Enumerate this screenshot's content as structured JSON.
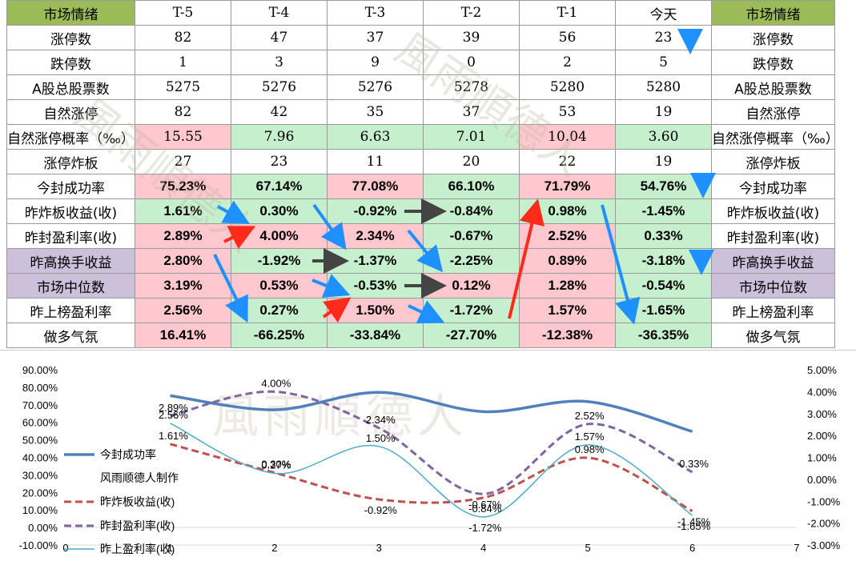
{
  "table": {
    "header": [
      "市场情绪",
      "T-5",
      "T-4",
      "T-3",
      "T-2",
      "T-1",
      "今天",
      "市场情绪"
    ],
    "rows": [
      {
        "label": "涨停数",
        "values": [
          "82",
          "47",
          "37",
          "39",
          "56",
          "23"
        ],
        "style": "red",
        "bg": [
          "",
          "",
          "",
          "",
          "",
          ""
        ]
      },
      {
        "label": "跌停数",
        "values": [
          "1",
          "3",
          "9",
          "0",
          "2",
          "5"
        ],
        "style": "green",
        "bg": [
          "",
          "",
          "",
          "",
          "",
          ""
        ]
      },
      {
        "label": "A股总股票数",
        "values": [
          "5275",
          "5276",
          "5276",
          "5278",
          "5280",
          "5280"
        ],
        "style": "black",
        "bg": [
          "",
          "",
          "",
          "",
          "",
          ""
        ]
      },
      {
        "label": "自然涨停",
        "values": [
          "82",
          "42",
          "35",
          "37",
          "53",
          "19"
        ],
        "style": "red",
        "bg": [
          "",
          "",
          "",
          "",
          "",
          ""
        ]
      },
      {
        "label": "自然涨停概率（‰）",
        "values": [
          "15.55",
          "7.96",
          "6.63",
          "7.01",
          "10.04",
          "3.60"
        ],
        "style": "mixed",
        "bg": [
          "pink",
          "green",
          "green",
          "green",
          "pink",
          "green"
        ]
      },
      {
        "label": "涨停炸板",
        "values": [
          "27",
          "23",
          "11",
          "20",
          "22",
          "19"
        ],
        "style": "green",
        "bg": [
          "",
          "",
          "",
          "",
          "",
          ""
        ]
      },
      {
        "label": "今封成功率",
        "values": [
          "75.23%",
          "67.14%",
          "77.08%",
          "66.10%",
          "71.79%",
          "54.76%"
        ],
        "style": "boldmixed",
        "bg": [
          "pink",
          "green",
          "pink",
          "green",
          "pink",
          "green"
        ]
      },
      {
        "label": "昨炸板收益(收)",
        "values": [
          "1.61%",
          "0.30%",
          "-0.92%",
          "-0.84%",
          "0.98%",
          "-1.45%"
        ],
        "style": "boldmixed",
        "bg": [
          "green",
          "green",
          "green",
          "green",
          "green",
          "green"
        ]
      },
      {
        "label": "昨封盈利率(收)",
        "values": [
          "2.89%",
          "4.00%",
          "2.34%",
          "-0.67%",
          "2.52%",
          "0.33%"
        ],
        "style": "boldmixed",
        "bg": [
          "pink",
          "pink",
          "pink",
          "green",
          "pink",
          "green"
        ]
      },
      {
        "label": "昨高换手收益",
        "values": [
          "2.80%",
          "-1.92%",
          "-1.37%",
          "-2.25%",
          "0.89%",
          "-3.18%"
        ],
        "style": "boldmixed",
        "bg": [
          "pink",
          "green",
          "green",
          "green",
          "pink",
          "green"
        ],
        "labelbg": "purple"
      },
      {
        "label": "市场中位数",
        "values": [
          "3.19%",
          "0.53%",
          "-0.53%",
          "0.12%",
          "1.28%",
          "-0.54%"
        ],
        "style": "boldmixed",
        "bg": [
          "pink",
          "pink",
          "green",
          "pink",
          "pink",
          "green"
        ],
        "labelbg": "purple"
      },
      {
        "label": "昨上榜盈利率",
        "values": [
          "2.56%",
          "0.27%",
          "1.50%",
          "-1.72%",
          "1.57%",
          "-1.65%"
        ],
        "style": "boldmixed",
        "bg": [
          "pink",
          "green",
          "pink",
          "green",
          "pink",
          "green"
        ]
      },
      {
        "label": "做多气氛",
        "values": [
          "16.41%",
          "-66.25%",
          "-33.84%",
          "-27.70%",
          "-12.38%",
          "-36.35%"
        ],
        "style": "boldmixed",
        "bg": [
          "pink",
          "green",
          "green",
          "green",
          "pink",
          "green"
        ]
      }
    ],
    "watermark": "風雨順德人"
  },
  "chart_data": {
    "type": "line",
    "x": [
      1,
      2,
      3,
      4,
      5,
      6
    ],
    "xlim": [
      0,
      7
    ],
    "xticks": [
      "0",
      "1",
      "2",
      "3",
      "4",
      "5",
      "6",
      "7"
    ],
    "y_left_ticks": [
      "90.00%",
      "80.00%",
      "70.00%",
      "60.00%",
      "50.00%",
      "40.00%",
      "30.00%",
      "20.00%",
      "10.00%",
      "0.00%",
      "-10.00%"
    ],
    "ylim_left": [
      -10,
      90
    ],
    "y_right_ticks": [
      "5.00%",
      "4.00%",
      "3.00%",
      "2.00%",
      "1.00%",
      "0.00%",
      "-1.00%",
      "-2.00%",
      "-3.00%"
    ],
    "ylim_right": [
      -3,
      5
    ],
    "series": [
      {
        "name": "今封成功率",
        "axis": "left",
        "values": [
          75.23,
          67.14,
          77.08,
          66.1,
          71.79,
          54.76
        ],
        "color": "#4f81bd",
        "dash": "",
        "width": 3.5,
        "labels": []
      },
      {
        "name": "昨炸板收益(收)",
        "axis": "right",
        "values": [
          1.61,
          0.3,
          -0.92,
          -0.84,
          0.98,
          -1.45
        ],
        "color": "#c0504d",
        "dash": "9,5",
        "width": 3,
        "labels": [
          "1.61%",
          "0.30%",
          "-0.92%",
          "-0.84%",
          "0.98%",
          "-1.45%"
        ]
      },
      {
        "name": "昨封盈利率(收)",
        "axis": "right",
        "values": [
          2.89,
          4.0,
          2.34,
          -0.67,
          2.52,
          0.33
        ],
        "color": "#8064a2",
        "dash": "9,5",
        "width": 3,
        "labels": [
          "2.89%",
          "4.00%",
          "2.34%",
          "-0.67%",
          "2.52%",
          "0.33%"
        ]
      },
      {
        "name": "昨上盈利率(收)",
        "axis": "right",
        "values": [
          2.56,
          0.27,
          1.5,
          -1.72,
          1.57,
          -1.65
        ],
        "color": "#4bacc6",
        "dash": "",
        "width": 1.5,
        "labels": [
          "2.56%",
          "0.27%",
          "1.50%",
          "-1.72%",
          "1.57%",
          "-1.65%"
        ]
      }
    ],
    "legend_extra": "风雨顺德人制作",
    "legend_position": "left",
    "watermark": "風雨順德人"
  }
}
